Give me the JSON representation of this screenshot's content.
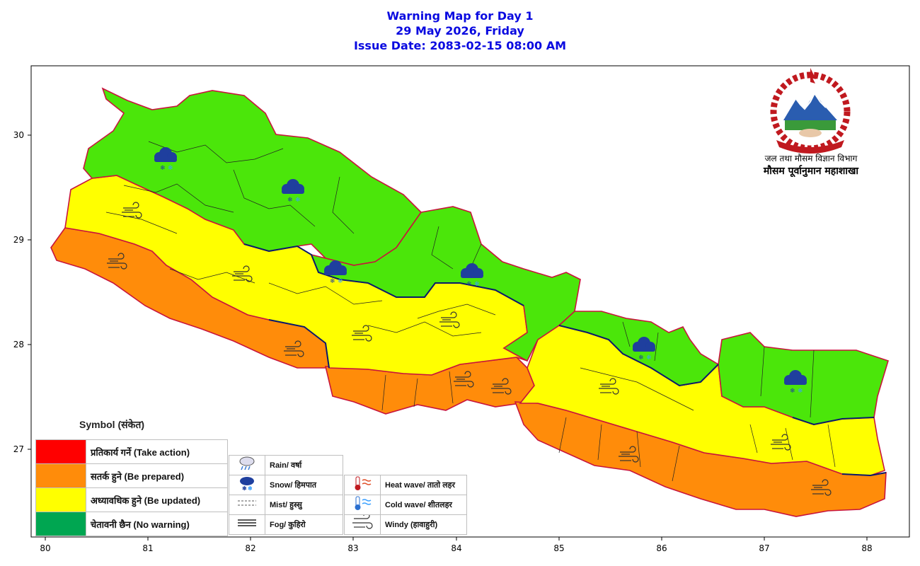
{
  "title": {
    "line1": "Warning Map for Day 1",
    "line2": "29 May 2026, Friday",
    "line3": "Issue Date: 2083-02-15 08:00 AM"
  },
  "axes": {
    "x_ticks": [
      "80",
      "81",
      "82",
      "83",
      "84",
      "85",
      "86",
      "87",
      "88"
    ],
    "y_ticks": [
      "30",
      "29",
      "28",
      "27"
    ]
  },
  "org": {
    "line1": "जल तथा मौसम विज्ञान विभाग",
    "line2": "मौसम पूर्वानुमान महाशाखा"
  },
  "legend": {
    "title": "Symbol (संकेत)",
    "levels": [
      {
        "label": "प्रतिकार्य गर्ने (Take action)",
        "color": "#ff0000"
      },
      {
        "label": "सतर्क हुने (Be prepared)",
        "color": "#ff8c0a"
      },
      {
        "label": "अध्यावधिक हुने (Be updated)",
        "color": "#ffff00"
      },
      {
        "label": "चेतावनी छैन (No warning)",
        "color": "#00a651"
      }
    ],
    "symbols_left": [
      {
        "icon": "rain-icon",
        "label": "Rain/ वर्षा"
      },
      {
        "icon": "snow-icon",
        "label": "Snow/ हिमपात"
      },
      {
        "icon": "mist-icon",
        "label": "Mist/ हुस्सु"
      },
      {
        "icon": "fog-icon",
        "label": "Fog/ कुहिरो"
      }
    ],
    "symbols_right": [
      {
        "icon": "heat-wave-icon",
        "label": "Heat wave/ तातो लहर"
      },
      {
        "icon": "cold-wave-icon",
        "label": "Cold wave/ शीतलहर"
      },
      {
        "icon": "windy-icon",
        "label": "Windy (हावाहुरी)"
      }
    ]
  },
  "colors": {
    "no_warning_map": "#4be60a",
    "be_updated": "#ffff00",
    "be_prepared": "#ff8c0a",
    "province_border": "#c8143c",
    "title": "#0a0ae0"
  }
}
